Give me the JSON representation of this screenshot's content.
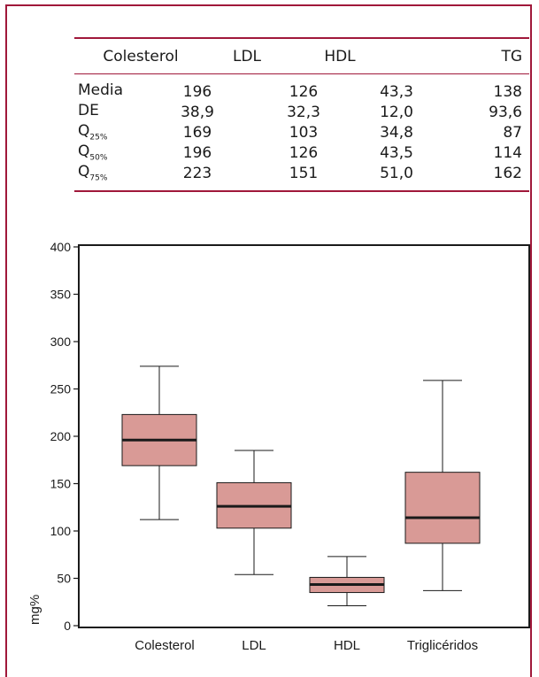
{
  "stats_table": {
    "headers": [
      "",
      "Colesterol",
      "LDL",
      "HDL",
      "TG"
    ],
    "rows": [
      {
        "label": "Media",
        "sub": "",
        "values": [
          "196",
          "126",
          "43,3",
          "138"
        ]
      },
      {
        "label": "DE",
        "sub": "",
        "values": [
          "38,9",
          "32,3",
          "12,0",
          "93,6"
        ]
      },
      {
        "label": "Q",
        "sub": "25%",
        "values": [
          "169",
          "103",
          "34,8",
          "87"
        ]
      },
      {
        "label": "Q",
        "sub": "50%",
        "values": [
          "196",
          "126",
          "43,5",
          "114"
        ]
      },
      {
        "label": "Q",
        "sub": "75%",
        "values": [
          "223",
          "151",
          "51,0",
          "162"
        ]
      }
    ]
  },
  "chart_data": {
    "type": "boxplot",
    "title": "",
    "xlabel": "",
    "ylabel": "mg%",
    "ylim": [
      0,
      400
    ],
    "yticks": [
      0,
      50,
      100,
      150,
      200,
      250,
      300,
      350,
      400
    ],
    "grid": false,
    "categories": [
      "Colesterol",
      "LDL",
      "HDL",
      "Triglicéridos"
    ],
    "boxes": [
      {
        "category": "Colesterol",
        "whisker_low": 112,
        "q1": 169,
        "median": 196,
        "q3": 223,
        "whisker_high": 274
      },
      {
        "category": "LDL",
        "whisker_low": 54,
        "q1": 103,
        "median": 126,
        "q3": 151,
        "whisker_high": 185
      },
      {
        "category": "HDL",
        "whisker_low": 21,
        "q1": 35,
        "median": 43.5,
        "q3": 51,
        "whisker_high": 73
      },
      {
        "category": "Triglicéridos",
        "whisker_low": 37,
        "q1": 87,
        "median": 114,
        "q3": 162,
        "whisker_high": 259
      }
    ],
    "colors": {
      "box_fill": "#d99a96",
      "line": "#1a1a1a",
      "accent_rule": "#a0183a"
    }
  }
}
